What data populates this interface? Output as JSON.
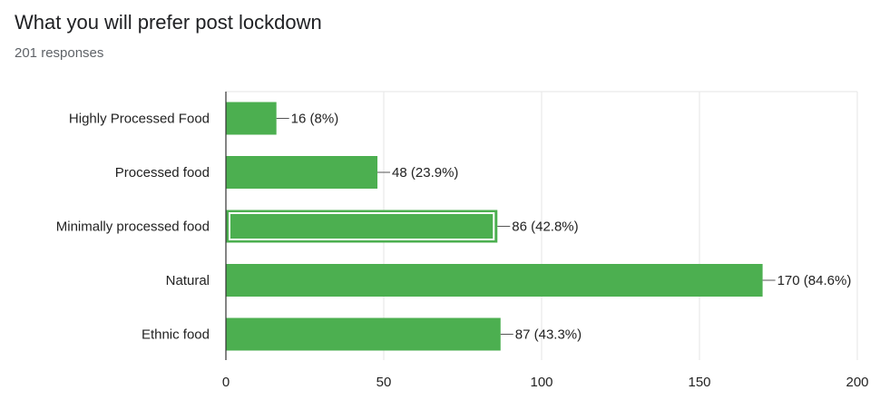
{
  "header": {
    "title": "What you will prefer post lockdown",
    "responses": "201 responses"
  },
  "chart_data": {
    "type": "bar",
    "orientation": "horizontal",
    "categories": [
      "Highly Processed Food",
      "Processed food",
      "Minimally processed food",
      "Natural",
      "Ethnic food"
    ],
    "values": [
      16,
      48,
      86,
      170,
      87
    ],
    "data_labels": [
      "16 (8%)",
      "48 (23.9%)",
      "86 (42.8%)",
      "170 (84.6%)",
      "87 (43.3%)"
    ],
    "highlighted_index": 2,
    "xlim": [
      0,
      200
    ],
    "xticks": [
      0,
      50,
      100,
      150,
      200
    ],
    "grid": true,
    "bar_color": "#4caf50",
    "title": "What you will prefer post lockdown",
    "xlabel": "",
    "ylabel": ""
  }
}
